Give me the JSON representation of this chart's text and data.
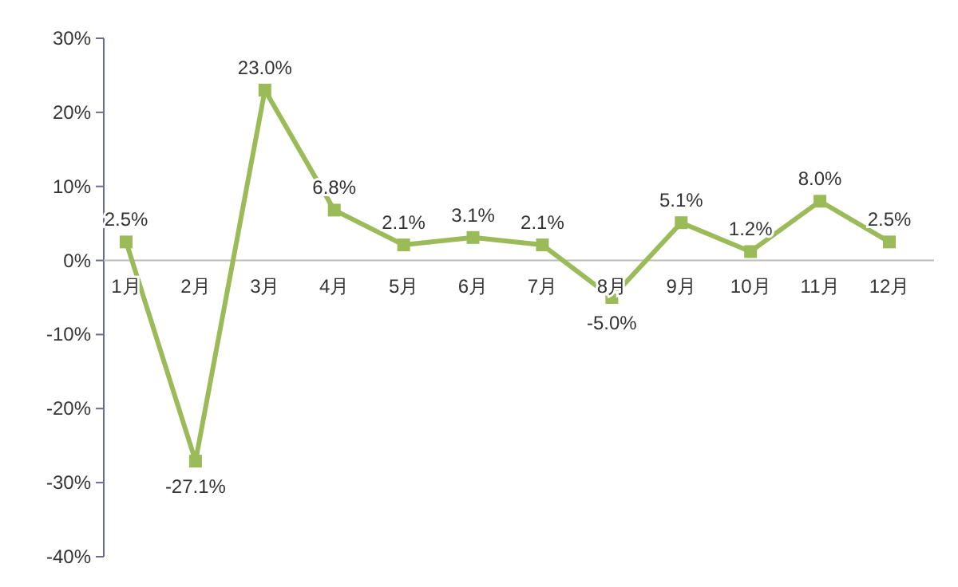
{
  "chart_data": {
    "type": "line",
    "categories": [
      "1月",
      "2月",
      "3月",
      "4月",
      "5月",
      "6月",
      "7月",
      "8月",
      "9月",
      "10月",
      "11月",
      "12月"
    ],
    "series": [
      {
        "color": "#9bbb59",
        "values": [
          2.5,
          -27.1,
          23.0,
          6.8,
          2.1,
          3.1,
          2.1,
          -5.0,
          5.1,
          1.2,
          8.0,
          2.5
        ],
        "value_labels": [
          "2.5%",
          "-27.1%",
          "23.0%",
          "6.8%",
          "2.1%",
          "3.1%",
          "2.1%",
          "-5.0%",
          "5.1%",
          "1.2%",
          "8.0%",
          "2.5%"
        ]
      }
    ],
    "ylim": [
      -40,
      30
    ],
    "yticks": [
      {
        "value": -40,
        "label": "-40%"
      },
      {
        "value": -30,
        "label": "-30%"
      },
      {
        "value": -20,
        "label": "-20%"
      },
      {
        "value": -10,
        "label": "-10%"
      },
      {
        "value": 0,
        "label": "0%"
      },
      {
        "value": 10,
        "label": "10%"
      },
      {
        "value": 20,
        "label": "20%"
      },
      {
        "value": 30,
        "label": "30%"
      }
    ],
    "grid": false,
    "marker": "square",
    "line_style": "solid"
  }
}
